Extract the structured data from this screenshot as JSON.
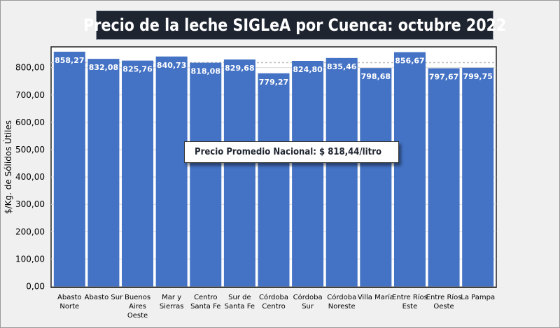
{
  "chart_data": {
    "type": "bar",
    "title": "Precio de la leche SIGLeA por Cuenca: octubre 2022",
    "xlabel": "",
    "ylabel": "$/Kg. de Sólidos Útiles",
    "ylim": [
      0,
      870
    ],
    "yticks": [
      "0,00",
      "100,00",
      "200,00",
      "300,00",
      "400,00",
      "500,00",
      "600,00",
      "700,00",
      "800,00"
    ],
    "ytick_values": [
      0,
      100,
      200,
      300,
      400,
      500,
      600,
      700,
      800
    ],
    "grid": true,
    "categories": [
      [
        "Abasto",
        "Norte"
      ],
      [
        "Abasto Sur"
      ],
      [
        "Buenos",
        "Aires",
        "Oeste"
      ],
      [
        "Mar y",
        "Sierras"
      ],
      [
        "Centro",
        "Santa Fe"
      ],
      [
        "Sur de",
        "Santa Fe"
      ],
      [
        "Córdoba",
        "Centro"
      ],
      [
        "Córdoba",
        "Sur"
      ],
      [
        "Córdoba",
        "Noreste"
      ],
      [
        "Villa María"
      ],
      [
        "Entre Ríos",
        "Este"
      ],
      [
        "Entre Ríos",
        "Oeste"
      ],
      [
        "La Pampa"
      ]
    ],
    "values": [
      858.27,
      832.08,
      825.76,
      840.73,
      818.08,
      829.68,
      779.27,
      824.8,
      835.46,
      798.68,
      856.67,
      797.67,
      799.75
    ],
    "value_labels": [
      "858,27",
      "832,08",
      "825,76",
      "840,73",
      "818,08",
      "829,68",
      "779,27",
      "824,80",
      "835,46",
      "798,68",
      "856,67",
      "797,67",
      "799,75"
    ],
    "average_line": 818.44,
    "annotation": "Precio Promedio Nacional: $ 818,44/litro",
    "bar_color": "#4472c4"
  }
}
